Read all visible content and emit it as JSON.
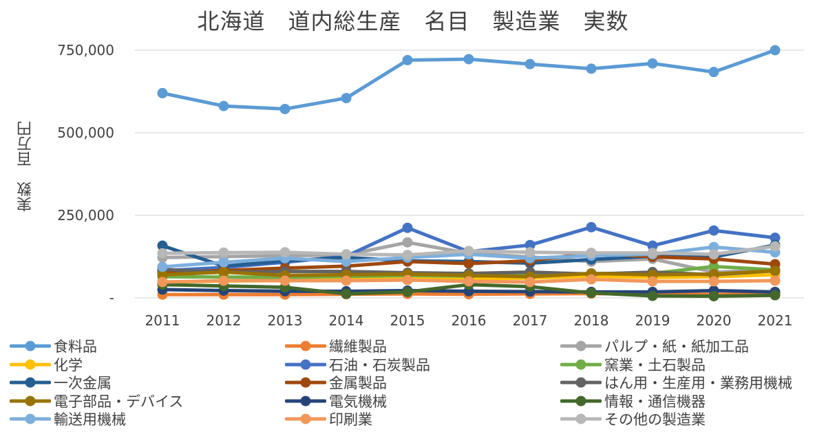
{
  "chart_data": {
    "type": "line",
    "title": "北海道　道内総生産　名目　製造業　実数",
    "ylabel": "実数　百万円",
    "xlabel": "",
    "x": [
      "2011",
      "2012",
      "2013",
      "2014",
      "2015",
      "2016",
      "2017",
      "2018",
      "2019",
      "2020",
      "2021"
    ],
    "ylim": [
      0,
      750000
    ],
    "yticks": [
      0,
      250000,
      500000,
      750000
    ],
    "ytick_labels": [
      "-",
      "250,000",
      "500,000",
      "750,000"
    ],
    "grid": true,
    "legend_position": "bottom",
    "series": [
      {
        "name": "食料品",
        "color": "#5b9bd5",
        "values": [
          620000,
          581000,
          572000,
          605000,
          720000,
          723000,
          708000,
          694000,
          710000,
          684000,
          750000
        ]
      },
      {
        "name": "繊維製品",
        "color": "#ed7d31",
        "values": [
          10000,
          10000,
          10000,
          11000,
          12000,
          11000,
          12000,
          13000,
          11000,
          11000,
          11000
        ]
      },
      {
        "name": "パルプ・紙・紙加工品",
        "color": "#a5a5a5",
        "values": [
          122000,
          125000,
          128000,
          130000,
          168000,
          135000,
          124000,
          110000,
          118000,
          78000,
          84000
        ]
      },
      {
        "name": "化学",
        "color": "#ffc000",
        "values": [
          48000,
          51000,
          52000,
          55000,
          60000,
          58000,
          60000,
          66000,
          62000,
          64000,
          70000
        ]
      },
      {
        "name": "石油・石炭製品",
        "color": "#4472c4",
        "values": [
          82000,
          92000,
          108000,
          126000,
          212000,
          140000,
          160000,
          214000,
          158000,
          204000,
          182000
        ]
      },
      {
        "name": "窯業・土石製品",
        "color": "#70ad47",
        "values": [
          64000,
          63000,
          62000,
          65000,
          68000,
          66000,
          68000,
          74000,
          74000,
          95000,
          85000
        ]
      },
      {
        "name": "一次金属",
        "color": "#255e91",
        "values": [
          158000,
          96000,
          112000,
          122000,
          112000,
          110000,
          105000,
          116000,
          126000,
          124000,
          160000
        ]
      },
      {
        "name": "金属製品",
        "color": "#9e480e",
        "values": [
          78000,
          83000,
          90000,
          96000,
          110000,
          104000,
          112000,
          136000,
          124000,
          118000,
          102000
        ]
      },
      {
        "name": "はん用・生産用・業務用機械",
        "color": "#636363",
        "values": [
          86000,
          78000,
          80000,
          80000,
          76000,
          74000,
          78000,
          72000,
          78000,
          70000,
          82000
        ]
      },
      {
        "name": "電子部品・デバイス",
        "color": "#997300",
        "values": [
          70000,
          78000,
          68000,
          70000,
          72000,
          68000,
          64000,
          74000,
          70000,
          72000,
          82000
        ]
      },
      {
        "name": "電気機械",
        "color": "#264478",
        "values": [
          25000,
          22000,
          20000,
          20000,
          22000,
          20000,
          19000,
          18000,
          18000,
          22000,
          18000
        ]
      },
      {
        "name": "情報・通信機器",
        "color": "#43682b",
        "values": [
          40000,
          36000,
          32000,
          12000,
          18000,
          40000,
          34000,
          15000,
          6000,
          5000,
          8000
        ]
      },
      {
        "name": "輸送用機械",
        "color": "#7cafdd",
        "values": [
          94000,
          108000,
          120000,
          110000,
          122000,
          132000,
          120000,
          128000,
          132000,
          154000,
          138000
        ]
      },
      {
        "name": "印刷業",
        "color": "#f1975a",
        "values": [
          48000,
          52000,
          52000,
          52000,
          54000,
          50000,
          48000,
          56000,
          50000,
          50000,
          52000
        ]
      },
      {
        "name": "その他の製造業",
        "color": "#b7b7b7",
        "values": [
          135000,
          137000,
          138000,
          132000,
          130000,
          142000,
          138000,
          136000,
          136000,
          132000,
          156000
        ]
      }
    ]
  }
}
